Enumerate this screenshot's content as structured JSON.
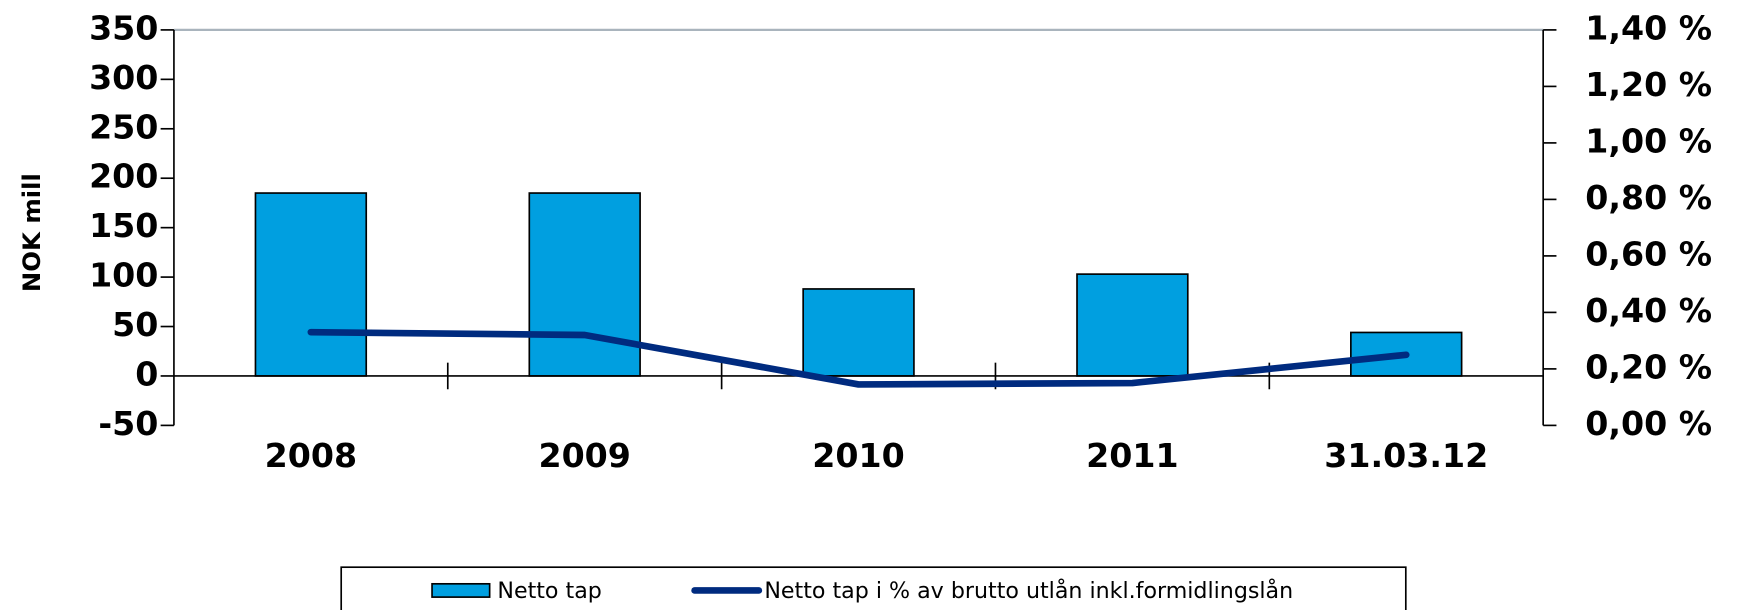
{
  "chart_data": {
    "type": "bar",
    "y_label": "NOK mill",
    "categories": [
      "2008",
      "2009",
      "2010",
      "2011",
      "31.03.12"
    ],
    "series": [
      {
        "name": "Netto tap",
        "type": "bar",
        "color": "#009fe0",
        "values": [
          185,
          185,
          88,
          103,
          44
        ]
      },
      {
        "name": "Netto tap i % av brutto utlån inkl.formidlingslån",
        "type": "line",
        "color": "#002b7f",
        "axis": "y2",
        "values": [
          0.33,
          0.32,
          0.145,
          0.15,
          0.25
        ]
      }
    ],
    "ylim": [
      -50,
      350
    ],
    "yticks": [
      -50,
      0,
      50,
      100,
      150,
      200,
      250,
      300,
      350
    ],
    "y2lim": [
      0,
      1.4
    ],
    "y2ticks": [
      {
        "value": 0,
        "label": "0,00 %"
      },
      {
        "value": 0.2,
        "label": "0,20 %"
      },
      {
        "value": 0.4,
        "label": "0,40 %"
      },
      {
        "value": 0.6,
        "label": "0,60 %"
      },
      {
        "value": 0.8,
        "label": "0,80 %"
      },
      {
        "value": 1.0,
        "label": "1,00 %"
      },
      {
        "value": 1.2,
        "label": "1,20 %"
      },
      {
        "value": 1.4,
        "label": "1,40 %"
      }
    ],
    "legend": "bottom"
  }
}
